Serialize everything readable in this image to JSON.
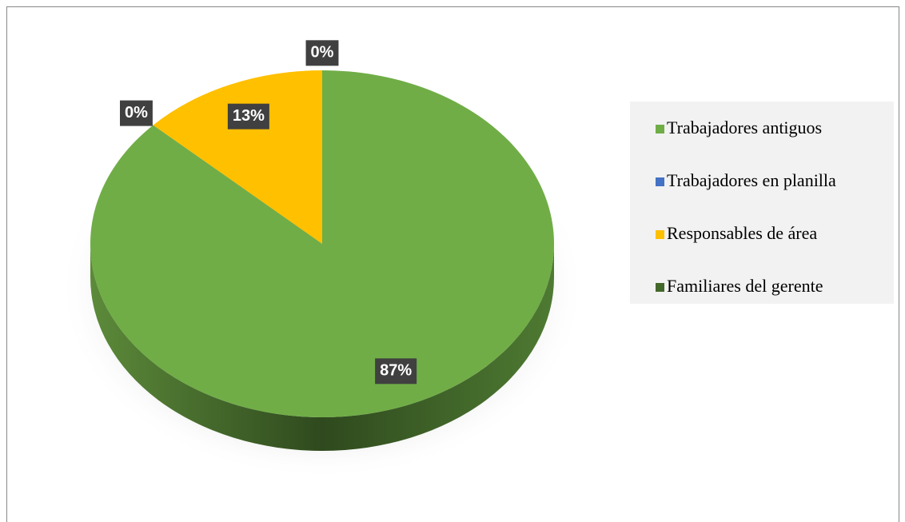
{
  "chart_data": {
    "type": "pie",
    "categories": [
      "Trabajadores antiguos",
      "Trabajadores en planilla",
      "Responsables de área",
      "Familiares del gerente"
    ],
    "values": [
      87,
      0,
      13,
      0
    ],
    "value_labels": [
      "87%",
      "0%",
      "13%",
      "0%"
    ],
    "colors": [
      "#70ad47",
      "#4472c4",
      "#ffc000",
      "#43682b"
    ],
    "legend": "right"
  }
}
